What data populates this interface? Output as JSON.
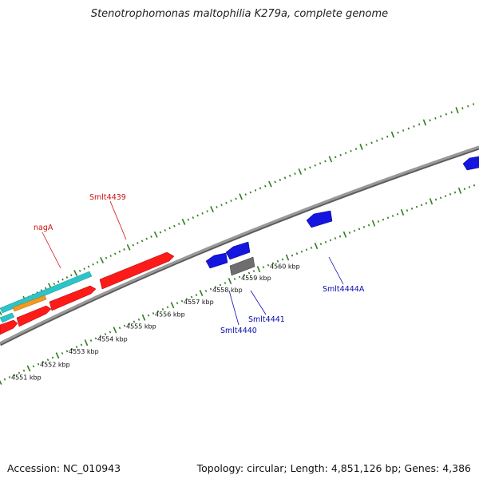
{
  "title": "Stenotrophomonas maltophilia K279a, complete genome",
  "footer": {
    "accession": "Accession: NC_010943",
    "summary": "Topology: circular; Length: 4,851,126 bp; Genes: 4,386"
  },
  "colors": {
    "backbone": "#8a8a8a",
    "ticks": "#2e7d1e",
    "red_gene": "#ff1a1a",
    "cyan_gene": "#2cc4c8",
    "orange_gene": "#f39a1e",
    "blue_gene": "#1515e0",
    "grey_gene": "#6e6e6e",
    "red_label": "#d01010",
    "blue_label": "#0a0ab0"
  },
  "ticks": {
    "major_labels": [
      "4551 kbp",
      "4552 kbp",
      "4553 kbp",
      "4554 kbp",
      "4555 kbp",
      "4556 kbp",
      "4557 kbp",
      "4558 kbp",
      "4559 kbp",
      "4560 kbp"
    ]
  },
  "gene_labels": {
    "nagA": "nagA",
    "smlt4439": "Smlt4439",
    "smlt4440": "Smlt4440",
    "smlt4441": "Smlt4441",
    "smlt4444a": "Smlt4444A"
  }
}
